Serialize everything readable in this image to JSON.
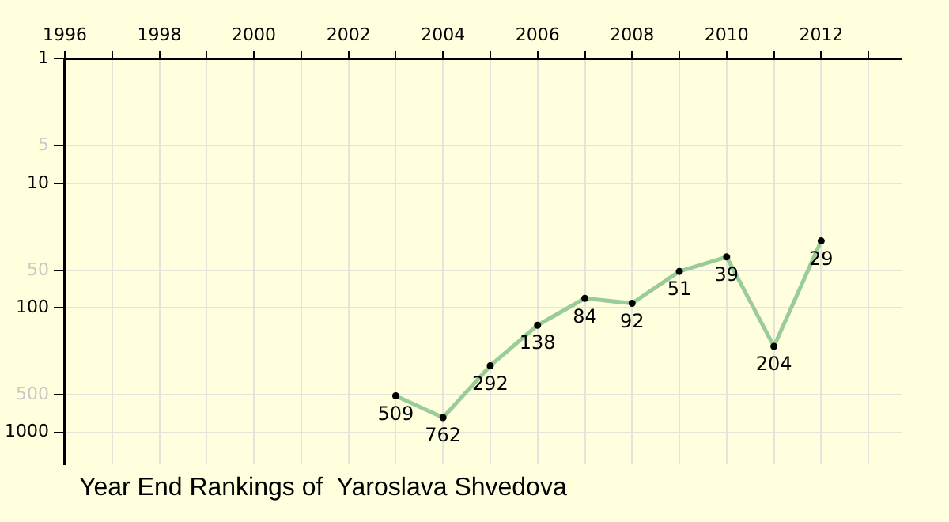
{
  "chart_data": {
    "type": "line",
    "title": "Year End Rankings of  Yaroslava Shvedova",
    "x": [
      2003,
      2004,
      2005,
      2006,
      2007,
      2008,
      2009,
      2010,
      2011,
      2012
    ],
    "values": [
      509,
      762,
      292,
      138,
      84,
      92,
      51,
      39,
      204,
      29
    ],
    "color": "#99cc99",
    "marker": "circle",
    "data_labels": true,
    "grid": true,
    "log": true,
    "xlim": [
      1996,
      2013.7
    ],
    "xticks": [
      1996,
      {
        "value": 1997,
        "label": null
      },
      1998,
      {
        "value": 1999,
        "label": null
      },
      2000,
      {
        "value": 2001,
        "label": null
      },
      2002,
      {
        "value": 2003,
        "label": null
      },
      2004,
      {
        "value": 2005,
        "label": null
      },
      2006,
      {
        "value": 2007,
        "label": null
      },
      2008,
      {
        "value": 2009,
        "label": null
      },
      2010,
      {
        "value": 2011,
        "label": null
      },
      2012,
      {
        "value": 2013,
        "label": null
      }
    ],
    "ylim": [
      1800,
      1
    ],
    "yticks": [
      1,
      5,
      10,
      50,
      100,
      500,
      1000
    ]
  }
}
